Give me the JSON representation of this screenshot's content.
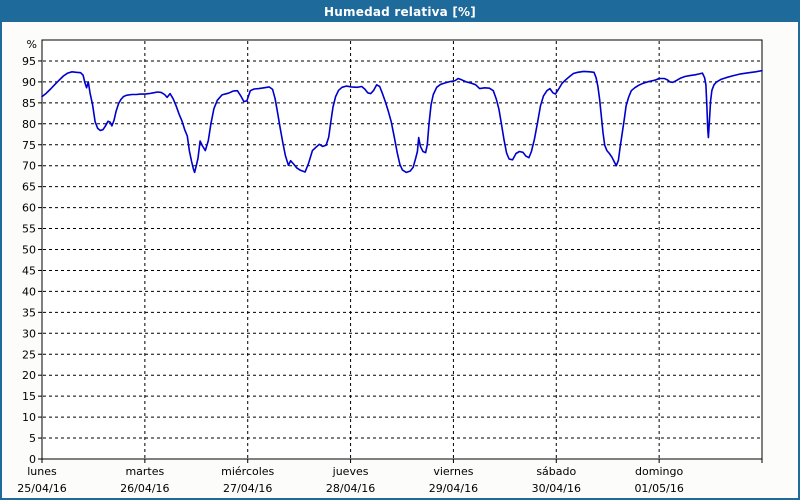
{
  "window": {
    "title": "Humedad relativa [%]"
  },
  "colors": {
    "titlebar_bg": "#1d6a9b",
    "title_text": "#ffffff",
    "window_border": "#1d6a9b",
    "content_bg": "#fcfdfa",
    "plot_bg": "#ffffff",
    "line": "#0000cc",
    "grid": "#000000",
    "axis": "#000000",
    "label_text": "#000000"
  },
  "chart_data": {
    "type": "line",
    "title": "Humedad relativa [%]",
    "ylabel": "%",
    "ylim": [
      0,
      100
    ],
    "grid": "dashed",
    "legend": "none",
    "y_ticks": [
      0,
      5,
      10,
      15,
      20,
      25,
      30,
      35,
      40,
      45,
      50,
      55,
      60,
      65,
      70,
      75,
      80,
      85,
      90,
      95
    ],
    "x_days": [
      {
        "name": "lunes",
        "date": "25/04/16"
      },
      {
        "name": "martes",
        "date": "26/04/16"
      },
      {
        "name": "miércoles",
        "date": "27/04/16"
      },
      {
        "name": "jueves",
        "date": "28/04/16"
      },
      {
        "name": "viernes",
        "date": "29/04/16"
      },
      {
        "name": "sábado",
        "date": "30/04/16"
      },
      {
        "name": "domingo",
        "date": "01/05/16"
      }
    ],
    "x_hours_total": 168,
    "series": [
      {
        "name": "Humedad relativa",
        "color": "#0000cc",
        "points": [
          [
            0,
            86.5
          ],
          [
            1,
            87.3
          ],
          [
            2,
            88.3
          ],
          [
            3,
            89.4
          ],
          [
            4,
            90.4
          ],
          [
            5,
            91.4
          ],
          [
            6,
            92.1
          ],
          [
            7,
            92.4
          ],
          [
            8,
            92.3
          ],
          [
            9,
            92.2
          ],
          [
            9.6,
            91.6
          ],
          [
            10,
            89.8
          ],
          [
            10.4,
            88.6
          ],
          [
            10.8,
            90.0
          ],
          [
            11.2,
            87.4
          ],
          [
            11.8,
            84.5
          ],
          [
            12.4,
            80.5
          ],
          [
            13,
            78.9
          ],
          [
            13.6,
            78.4
          ],
          [
            14.2,
            78.6
          ],
          [
            14.7,
            79.3
          ],
          [
            15.4,
            80.6
          ],
          [
            15.9,
            80.4
          ],
          [
            16.3,
            79.5
          ],
          [
            16.8,
            80.8
          ],
          [
            17.3,
            83.0
          ],
          [
            17.9,
            84.9
          ],
          [
            18.4,
            85.8
          ],
          [
            19,
            86.5
          ],
          [
            19.7,
            86.8
          ],
          [
            21,
            87.0
          ],
          [
            22,
            87.0
          ],
          [
            23,
            87.1
          ],
          [
            24,
            87.1
          ],
          [
            25,
            87.2
          ],
          [
            26,
            87.4
          ],
          [
            27,
            87.6
          ],
          [
            27.8,
            87.5
          ],
          [
            28.6,
            87.0
          ],
          [
            29.2,
            86.3
          ],
          [
            29.9,
            87.2
          ],
          [
            30.6,
            86.0
          ],
          [
            31.3,
            84.3
          ],
          [
            32,
            82.3
          ],
          [
            32.7,
            80.6
          ],
          [
            33.3,
            78.6
          ],
          [
            33.9,
            77.1
          ],
          [
            34.4,
            73.5
          ],
          [
            34.9,
            71.0
          ],
          [
            35.3,
            69.3
          ],
          [
            35.6,
            68.4
          ],
          [
            36,
            70.0
          ],
          [
            36.4,
            71.8
          ],
          [
            36.9,
            75.9
          ],
          [
            37.4,
            74.8
          ],
          [
            38.1,
            73.6
          ],
          [
            38.8,
            76.0
          ],
          [
            39.4,
            80.0
          ],
          [
            40.1,
            83.6
          ],
          [
            40.9,
            85.6
          ],
          [
            42,
            86.9
          ],
          [
            43.5,
            87.3
          ],
          [
            44.6,
            87.8
          ],
          [
            45.6,
            87.9
          ],
          [
            46.4,
            86.6
          ],
          [
            47.1,
            85.3
          ],
          [
            47.8,
            85.5
          ],
          [
            48.6,
            87.9
          ],
          [
            49.5,
            88.3
          ],
          [
            50.6,
            88.4
          ],
          [
            51.8,
            88.6
          ],
          [
            53,
            88.8
          ],
          [
            53.8,
            88.2
          ],
          [
            54.4,
            86.0
          ],
          [
            55,
            82.5
          ],
          [
            55.6,
            78.8
          ],
          [
            56.2,
            75.4
          ],
          [
            56.8,
            72.4
          ],
          [
            57.5,
            70.1
          ],
          [
            58,
            71.2
          ],
          [
            58.7,
            70.4
          ],
          [
            59.4,
            69.5
          ],
          [
            60.3,
            68.9
          ],
          [
            61.4,
            68.5
          ],
          [
            62.2,
            70.6
          ],
          [
            63.1,
            73.6
          ],
          [
            63.9,
            74.4
          ],
          [
            64.7,
            75.1
          ],
          [
            65.5,
            74.6
          ],
          [
            66.3,
            74.9
          ],
          [
            66.9,
            76.8
          ],
          [
            67.4,
            80.6
          ],
          [
            67.9,
            84.0
          ],
          [
            68.5,
            86.5
          ],
          [
            69.2,
            88.0
          ],
          [
            70,
            88.7
          ],
          [
            71,
            89.0
          ],
          [
            72.2,
            88.8
          ],
          [
            73.5,
            88.7
          ],
          [
            74.6,
            88.9
          ],
          [
            75.3,
            88.3
          ],
          [
            76,
            87.4
          ],
          [
            76.7,
            87.2
          ],
          [
            77.4,
            88.0
          ],
          [
            78.1,
            89.3
          ],
          [
            78.8,
            88.9
          ],
          [
            79.4,
            87.3
          ],
          [
            80.1,
            85.3
          ],
          [
            80.8,
            83.0
          ],
          [
            81.5,
            80.4
          ],
          [
            82.2,
            76.8
          ],
          [
            82.9,
            73.0
          ],
          [
            83.5,
            70.3
          ],
          [
            84.1,
            69.0
          ],
          [
            85,
            68.4
          ],
          [
            85.9,
            68.7
          ],
          [
            86.6,
            69.6
          ],
          [
            87.2,
            71.8
          ],
          [
            87.6,
            73.4
          ],
          [
            87.9,
            76.7
          ],
          [
            88.3,
            74.6
          ],
          [
            88.9,
            73.4
          ],
          [
            89.5,
            73.1
          ],
          [
            89.9,
            75.0
          ],
          [
            90.3,
            80.0
          ],
          [
            90.8,
            84.6
          ],
          [
            91.3,
            87.0
          ],
          [
            92.1,
            88.7
          ],
          [
            93,
            89.4
          ],
          [
            94.2,
            89.8
          ],
          [
            95.3,
            90.1
          ],
          [
            96.4,
            90.3
          ],
          [
            97.1,
            90.8
          ],
          [
            97.9,
            90.5
          ],
          [
            99,
            90.0
          ],
          [
            100.2,
            89.7
          ],
          [
            101.2,
            89.3
          ],
          [
            102.1,
            88.4
          ],
          [
            103.3,
            88.6
          ],
          [
            104.4,
            88.5
          ],
          [
            105.3,
            87.9
          ],
          [
            106,
            85.9
          ],
          [
            106.6,
            83.5
          ],
          [
            107.2,
            80.0
          ],
          [
            107.8,
            76.2
          ],
          [
            108.4,
            73.0
          ],
          [
            109,
            71.6
          ],
          [
            109.8,
            71.4
          ],
          [
            110.6,
            72.9
          ],
          [
            111.4,
            73.4
          ],
          [
            112.2,
            73.2
          ],
          [
            112.9,
            72.3
          ],
          [
            113.6,
            71.9
          ],
          [
            114.2,
            73.4
          ],
          [
            114.9,
            76.3
          ],
          [
            115.6,
            80.1
          ],
          [
            116.3,
            84.2
          ],
          [
            117,
            86.6
          ],
          [
            117.8,
            87.9
          ],
          [
            118.5,
            88.4
          ],
          [
            119.2,
            87.4
          ],
          [
            119.8,
            87.1
          ],
          [
            120.6,
            88.4
          ],
          [
            121.3,
            89.6
          ],
          [
            122.2,
            90.5
          ],
          [
            123.1,
            91.3
          ],
          [
            124,
            92.0
          ],
          [
            125,
            92.3
          ],
          [
            126.4,
            92.5
          ],
          [
            127.8,
            92.4
          ],
          [
            128.8,
            92.3
          ],
          [
            129.3,
            91.0
          ],
          [
            129.7,
            88.9
          ],
          [
            130.1,
            85.9
          ],
          [
            130.5,
            81.9
          ],
          [
            130.9,
            77.9
          ],
          [
            131.3,
            74.9
          ],
          [
            131.8,
            73.6
          ],
          [
            132.4,
            72.9
          ],
          [
            133,
            72.0
          ],
          [
            133.5,
            71.0
          ],
          [
            134,
            70.0
          ],
          [
            134.5,
            71.3
          ],
          [
            134.9,
            74.4
          ],
          [
            135.4,
            77.9
          ],
          [
            135.9,
            81.3
          ],
          [
            136.3,
            84.3
          ],
          [
            136.9,
            86.4
          ],
          [
            137.5,
            87.9
          ],
          [
            138.3,
            88.6
          ],
          [
            139.2,
            89.2
          ],
          [
            140.3,
            89.7
          ],
          [
            141.6,
            90.1
          ],
          [
            143,
            90.4
          ],
          [
            144,
            90.8
          ],
          [
            145.2,
            90.8
          ],
          [
            145.9,
            90.5
          ],
          [
            146.5,
            90.0
          ],
          [
            147.2,
            89.9
          ],
          [
            148,
            90.3
          ],
          [
            149,
            90.9
          ],
          [
            150,
            91.3
          ],
          [
            151.2,
            91.5
          ],
          [
            152.4,
            91.7
          ],
          [
            153.4,
            91.9
          ],
          [
            154.1,
            92.1
          ],
          [
            154.6,
            91.0
          ],
          [
            154.9,
            89.3
          ],
          [
            155.15,
            84.0
          ],
          [
            155.35,
            78.5
          ],
          [
            155.5,
            76.7
          ],
          [
            155.75,
            81.0
          ],
          [
            156,
            85.5
          ],
          [
            156.3,
            88.0
          ],
          [
            156.8,
            89.3
          ],
          [
            157.4,
            90.0
          ],
          [
            158.4,
            90.6
          ],
          [
            159.6,
            91.0
          ],
          [
            161,
            91.4
          ],
          [
            163,
            91.9
          ],
          [
            165,
            92.2
          ],
          [
            166.5,
            92.4
          ],
          [
            168,
            92.7
          ]
        ]
      }
    ]
  }
}
